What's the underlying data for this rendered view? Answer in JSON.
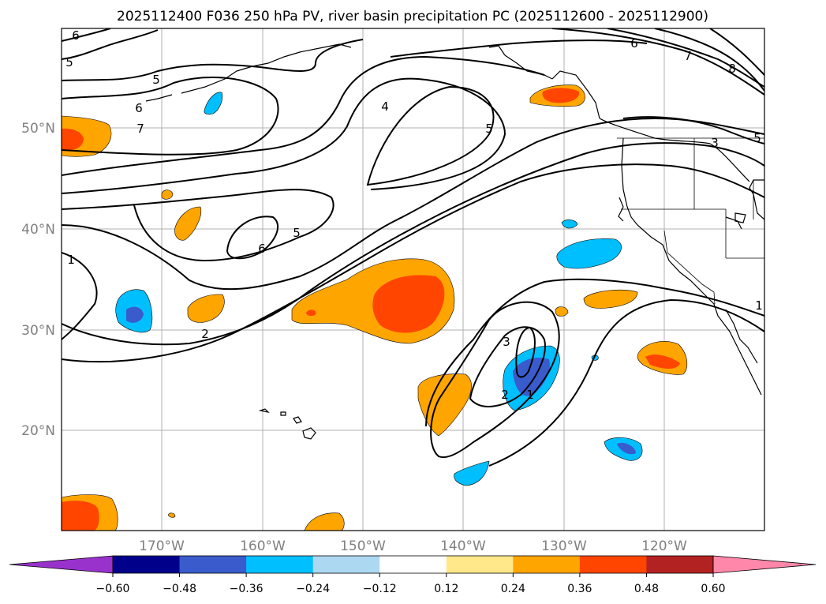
{
  "title": "2025112400 F036 250 hPa PV, river basin precipitation PC (2025112600 - 2025112900)",
  "lat_labels": [
    "50°N",
    "40°N",
    "30°N",
    "20°N"
  ],
  "lon_labels": [
    "170°W",
    "160°W",
    "150°W",
    "140°W",
    "130°W",
    "120°W"
  ],
  "contour_labels": [
    "6",
    "5",
    "5",
    "6",
    "7",
    "4",
    "5",
    "6",
    "7",
    "8",
    "5",
    "3",
    "6",
    "5",
    "1",
    "2",
    "3",
    "2",
    "1",
    "1"
  ],
  "colorbar": {
    "ticks": [
      "−0.60",
      "−0.48",
      "−0.36",
      "−0.24",
      "−0.12",
      "0.12",
      "0.24",
      "0.36",
      "0.48",
      "0.60"
    ],
    "colors": [
      "#9932cc",
      "#00008b",
      "#3a5bcc",
      "#00bfff",
      "#add8f2",
      "#ffffff",
      "#ffe88a",
      "#ffa500",
      "#ff4500",
      "#b22222",
      "#ff88aa"
    ]
  },
  "colors": {
    "pos_orange": "#ffa500",
    "pos_red": "#ff4500",
    "neg_cyan": "#00bfff",
    "neg_blue": "#3a5bcc",
    "grid": "#b0b0b0",
    "axis_text": "#808080"
  }
}
